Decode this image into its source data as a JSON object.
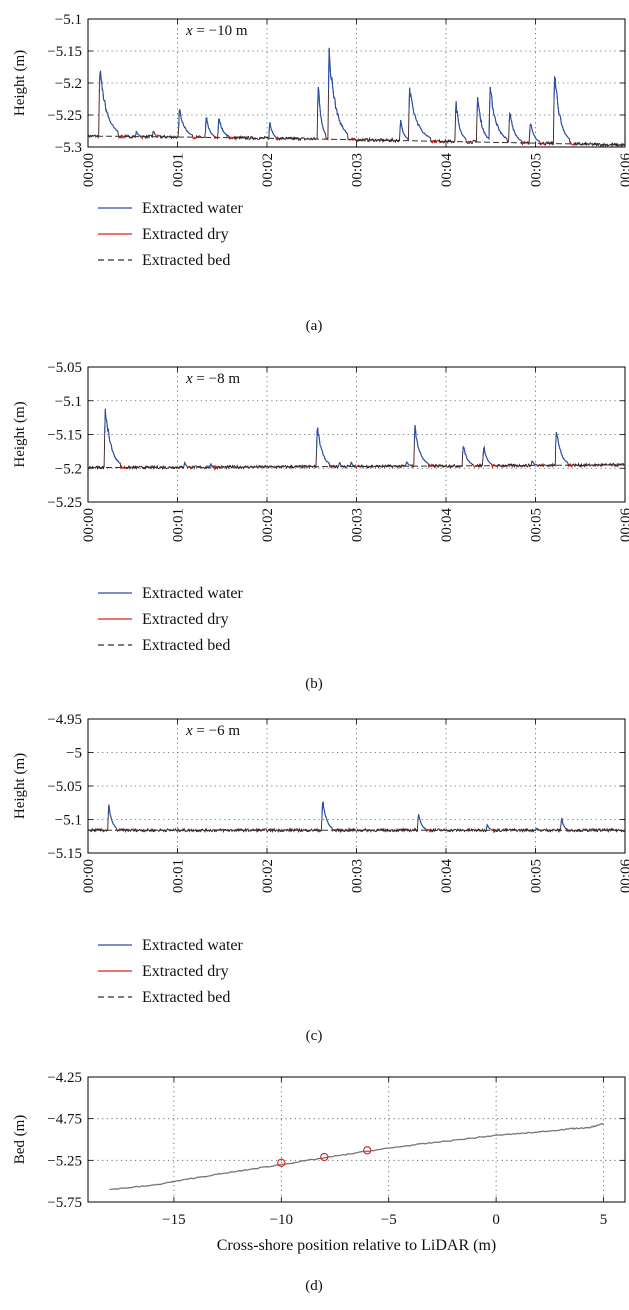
{
  "chart_data": [
    {
      "id": "a",
      "type": "line",
      "panel_label": "(a)",
      "ylabel": "Height (m)",
      "xlabel": "",
      "annotation": "x = −10 m",
      "annotation_var": "x",
      "annotation_rest": " = −10 m",
      "ylim": [
        -5.3,
        -5.1
      ],
      "yticks": [
        -5.1,
        -5.15,
        -5.2,
        -5.25,
        -5.3
      ],
      "ytick_labels": [
        "−5.1",
        "−5.15",
        "−5.2",
        "−5.25",
        "−5.3"
      ],
      "xlim": [
        0,
        6
      ],
      "xticks": [
        0,
        1,
        2,
        3,
        4,
        5,
        6
      ],
      "xtick_labels": [
        "00:00",
        "00:01",
        "00:02",
        "00:03",
        "00:04",
        "00:05",
        "00:06"
      ],
      "grid": true,
      "legend": [
        "Extracted water",
        "Extracted dry",
        "Extracted bed"
      ],
      "bed": {
        "a": -5.283,
        "b": -5.297
      },
      "noise": 0.0025,
      "events": [
        {
          "t": 0.14,
          "peak": -5.16,
          "width": 0.22
        },
        {
          "t": 0.55,
          "peak": -5.27,
          "width": 0.06
        },
        {
          "t": 0.74,
          "peak": -5.265,
          "width": 0.05
        },
        {
          "t": 1.03,
          "peak": -5.23,
          "width": 0.16
        },
        {
          "t": 1.33,
          "peak": -5.24,
          "width": 0.1
        },
        {
          "t": 1.47,
          "peak": -5.245,
          "width": 0.13
        },
        {
          "t": 2.04,
          "peak": -5.245,
          "width": 0.08
        },
        {
          "t": 2.58,
          "peak": -5.165,
          "width": 0.1
        },
        {
          "t": 2.7,
          "peak": -5.125,
          "width": 0.22
        },
        {
          "t": 3.5,
          "peak": -5.245,
          "width": 0.1
        },
        {
          "t": 3.6,
          "peak": -5.2,
          "width": 0.25
        },
        {
          "t": 4.12,
          "peak": -5.21,
          "width": 0.12
        },
        {
          "t": 4.36,
          "peak": -5.2,
          "width": 0.14
        },
        {
          "t": 4.5,
          "peak": -5.19,
          "width": 0.2
        },
        {
          "t": 4.72,
          "peak": -5.23,
          "width": 0.14
        },
        {
          "t": 4.95,
          "peak": -5.25,
          "width": 0.12
        },
        {
          "t": 5.22,
          "peak": -5.16,
          "width": 0.18
        }
      ]
    },
    {
      "id": "b",
      "type": "line",
      "panel_label": "(b)",
      "ylabel": "Height (m)",
      "xlabel": "",
      "annotation": "x = −8 m",
      "annotation_var": "x",
      "annotation_rest": " = −8 m",
      "ylim": [
        -5.25,
        -5.05
      ],
      "yticks": [
        -5.05,
        -5.1,
        -5.15,
        -5.2,
        -5.25
      ],
      "ytick_labels": [
        "−5.05",
        "−5.1",
        "−5.15",
        "−5.2",
        "−5.25"
      ],
      "xlim": [
        0,
        6
      ],
      "xticks": [
        0,
        1,
        2,
        3,
        4,
        5,
        6
      ],
      "xtick_labels": [
        "00:00",
        "00:01",
        "00:02",
        "00:03",
        "00:04",
        "00:05",
        "00:06"
      ],
      "grid": true,
      "legend": [
        "Extracted water",
        "Extracted dry",
        "Extracted bed"
      ],
      "bed": {
        "a": -5.199,
        "b": -5.195
      },
      "noise": 0.0022,
      "events": [
        {
          "t": 0.2,
          "peak": -5.09,
          "width": 0.18
        },
        {
          "t": 1.09,
          "peak": -5.185,
          "width": 0.05
        },
        {
          "t": 1.38,
          "peak": -5.188,
          "width": 0.05
        },
        {
          "t": 2.57,
          "peak": -5.12,
          "width": 0.15
        },
        {
          "t": 2.82,
          "peak": -5.185,
          "width": 0.05
        },
        {
          "t": 2.95,
          "peak": -5.185,
          "width": 0.05
        },
        {
          "t": 3.57,
          "peak": -5.185,
          "width": 0.06
        },
        {
          "t": 3.66,
          "peak": -5.125,
          "width": 0.16
        },
        {
          "t": 4.2,
          "peak": -5.155,
          "width": 0.12
        },
        {
          "t": 4.43,
          "peak": -5.155,
          "width": 0.1
        },
        {
          "t": 4.97,
          "peak": -5.185,
          "width": 0.08
        },
        {
          "t": 5.24,
          "peak": -5.125,
          "width": 0.14
        }
      ]
    },
    {
      "id": "c",
      "type": "line",
      "panel_label": "(c)",
      "ylabel": "Height (m)",
      "xlabel": "",
      "annotation": "x = −6 m",
      "annotation_var": "x",
      "annotation_rest": " = −6 m",
      "ylim": [
        -5.15,
        -4.95
      ],
      "yticks": [
        -4.95,
        -5.0,
        -5.05,
        -5.1,
        -5.15
      ],
      "ytick_labels": [
        "−4.95",
        "−5",
        "−5.05",
        "−5.1",
        "−5.15"
      ],
      "xlim": [
        0,
        6
      ],
      "xticks": [
        0,
        1,
        2,
        3,
        4,
        5,
        6
      ],
      "xtick_labels": [
        "00:00",
        "00:01",
        "00:02",
        "00:03",
        "00:04",
        "00:05",
        "00:06"
      ],
      "grid": true,
      "legend": [
        "Extracted water",
        "Extracted dry",
        "Extracted bed"
      ],
      "bed": {
        "a": -5.116,
        "b": -5.116
      },
      "noise": 0.0022,
      "events": [
        {
          "t": 0.24,
          "peak": -5.062,
          "width": 0.1
        },
        {
          "t": 2.63,
          "peak": -5.056,
          "width": 0.12
        },
        {
          "t": 3.7,
          "peak": -5.082,
          "width": 0.1
        },
        {
          "t": 4.47,
          "peak": -5.1,
          "width": 0.06
        },
        {
          "t": 5.02,
          "peak": -5.11,
          "width": 0.05
        },
        {
          "t": 5.3,
          "peak": -5.085,
          "width": 0.07
        }
      ]
    },
    {
      "id": "d",
      "type": "line",
      "panel_label": "(d)",
      "ylabel": "Bed (m)",
      "xlabel": "Cross-shore position relative to LiDAR (m)",
      "ylim": [
        -5.75,
        -4.25
      ],
      "yticks": [
        -4.25,
        -4.75,
        -5.25,
        -5.75
      ],
      "ytick_labels": [
        "−4.25",
        "−4.75",
        "−5.25",
        "−5.75"
      ],
      "xlim": [
        -19,
        6
      ],
      "xticks": [
        -15,
        -10,
        -5,
        0,
        5
      ],
      "xtick_labels": [
        "−15",
        "−10",
        "−5",
        "0",
        "5"
      ],
      "grid": true,
      "profile": [
        [
          -18,
          -5.6
        ],
        [
          -16,
          -5.55
        ],
        [
          -14,
          -5.46
        ],
        [
          -12,
          -5.38
        ],
        [
          -10,
          -5.3
        ],
        [
          -8,
          -5.22
        ],
        [
          -6,
          -5.14
        ],
        [
          -4,
          -5.07
        ],
        [
          -2,
          -5.01
        ],
        [
          0,
          -4.95
        ],
        [
          2,
          -4.91
        ],
        [
          3.5,
          -4.87
        ],
        [
          4.3,
          -4.86
        ],
        [
          5,
          -4.81
        ]
      ],
      "markers": [
        [
          -10,
          -5.28
        ],
        [
          -8,
          -5.21
        ],
        [
          -6,
          -5.13
        ]
      ]
    }
  ],
  "colors": {
    "water": "#2a4fa8",
    "dry": "#e0201b",
    "bed": "#333333",
    "profile": "#777777",
    "marker": "#d02020",
    "grid": "#555555"
  }
}
